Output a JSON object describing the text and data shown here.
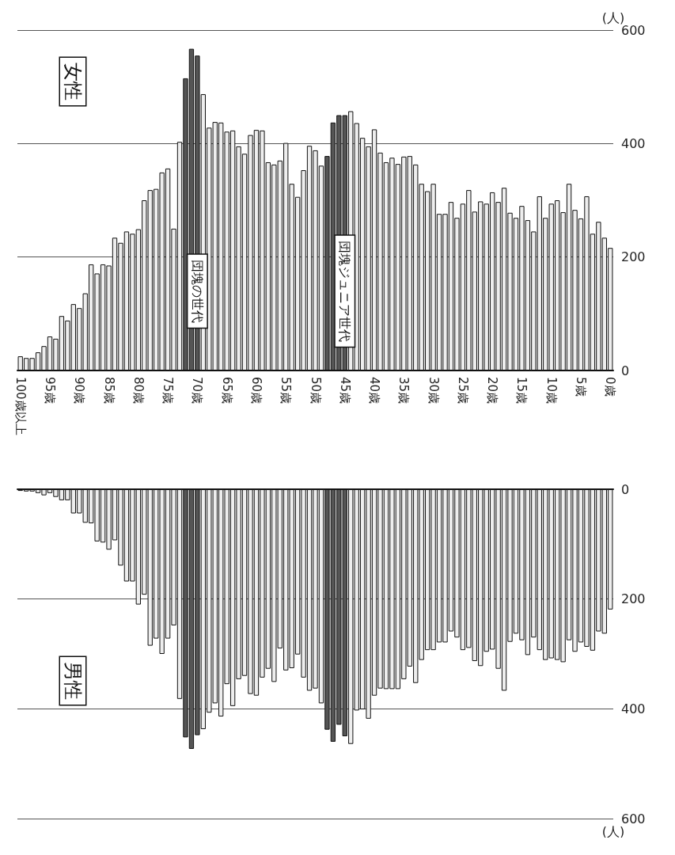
{
  "chart_data": [
    {
      "type": "bar",
      "categories": [
        "100歳以上",
        null,
        null,
        null,
        null,
        "95歳",
        null,
        null,
        null,
        null,
        "90歳",
        null,
        null,
        null,
        null,
        "85歳",
        null,
        null,
        null,
        null,
        "80歳",
        null,
        null,
        null,
        null,
        "75歳",
        null,
        null,
        null,
        null,
        "70歳",
        null,
        null,
        null,
        null,
        "65歳",
        null,
        null,
        null,
        null,
        "60歳",
        null,
        null,
        null,
        null,
        "55歳",
        null,
        null,
        null,
        null,
        "50歳",
        null,
        null,
        null,
        null,
        "45歳",
        null,
        null,
        null,
        null,
        "40歳",
        null,
        null,
        null,
        null,
        "35歳",
        null,
        null,
        null,
        null,
        "30歳",
        null,
        null,
        null,
        null,
        "25歳",
        null,
        null,
        null,
        null,
        "20歳",
        null,
        null,
        null,
        null,
        "15歳",
        null,
        null,
        null,
        null,
        "10歳",
        null,
        null,
        null,
        null,
        "5歳",
        null,
        null,
        null,
        null,
        "0歳"
      ],
      "series": [
        {
          "name": "女性",
          "values": [
            25,
            22,
            22,
            32,
            43,
            60,
            56,
            96,
            88,
            117,
            110,
            136,
            187,
            171,
            187,
            185,
            234,
            225,
            245,
            241,
            249,
            300,
            318,
            320,
            349,
            356,
            250,
            403,
            515,
            567,
            555,
            487,
            428,
            438,
            437,
            421,
            423,
            395,
            382,
            415,
            424,
            423,
            367,
            363,
            370,
            401,
            329,
            306,
            353,
            396,
            388,
            361,
            378,
            437,
            450,
            450,
            457,
            436,
            410,
            395,
            425,
            384,
            367,
            375,
            364,
            377,
            378,
            363,
            329,
            316,
            329,
            276,
            276,
            297,
            269,
            294,
            318,
            280,
            298,
            294,
            314,
            297,
            322,
            278,
            269,
            290,
            265,
            245,
            307,
            269,
            294,
            300,
            279,
            329,
            283,
            268,
            307,
            241,
            262,
            234,
            216
          ],
          "colors": [
            "#eeeeee",
            "#eeeeee",
            "#eeeeee",
            "#eeeeee",
            "#eeeeee",
            "#eeeeee",
            "#eeeeee",
            "#eeeeee",
            "#eeeeee",
            "#eeeeee",
            "#eeeeee",
            "#eeeeee",
            "#eeeeee",
            "#eeeeee",
            "#eeeeee",
            "#eeeeee",
            "#eeeeee",
            "#eeeeee",
            "#eeeeee",
            "#eeeeee",
            "#eeeeee",
            "#eeeeee",
            "#eeeeee",
            "#eeeeee",
            "#eeeeee",
            "#eeeeee",
            "#eeeeee",
            "#eeeeee",
            "#555555",
            "#555555",
            "#555555",
            "#eeeeee",
            "#eeeeee",
            "#eeeeee",
            "#eeeeee",
            "#eeeeee",
            "#eeeeee",
            "#eeeeee",
            "#eeeeee",
            "#eeeeee",
            "#eeeeee",
            "#eeeeee",
            "#eeeeee",
            "#eeeeee",
            "#eeeeee",
            "#eeeeee",
            "#eeeeee",
            "#eeeeee",
            "#eeeeee",
            "#eeeeee",
            "#eeeeee",
            "#eeeeee",
            "#555555",
            "#555555",
            "#555555",
            "#555555",
            "#eeeeee",
            "#eeeeee",
            "#eeeeee",
            "#eeeeee",
            "#eeeeee",
            "#eeeeee",
            "#eeeeee",
            "#eeeeee",
            "#eeeeee",
            "#eeeeee",
            "#eeeeee",
            "#eeeeee",
            "#eeeeee",
            "#eeeeee",
            "#eeeeee",
            "#eeeeee",
            "#eeeeee",
            "#eeeeee",
            "#eeeeee",
            "#eeeeee",
            "#eeeeee",
            "#eeeeee",
            "#eeeeee",
            "#eeeeee",
            "#eeeeee",
            "#eeeeee",
            "#eeeeee",
            "#eeeeee",
            "#eeeeee",
            "#eeeeee",
            "#eeeeee",
            "#eeeeee",
            "#eeeeee",
            "#eeeeee",
            "#eeeeee",
            "#eeeeee",
            "#eeeeee",
            "#eeeeee",
            "#eeeeee",
            "#eeeeee",
            "#eeeeee",
            "#eeeeee",
            "#eeeeee",
            "#eeeeee",
            "#eeeeee"
          ]
        }
      ],
      "ylim": [
        0,
        600
      ],
      "yticks": [
        0,
        200,
        400,
        600
      ],
      "ylabel": "(人)",
      "grid": "y",
      "legend": false,
      "annotations": [
        {
          "text": "団塊の世代",
          "x": "70歳",
          "y": 140
        },
        {
          "text": "団塊ジュニア世代",
          "x": "45歳",
          "y": 140
        }
      ]
    },
    {
      "type": "bar",
      "categories": [
        null,
        null,
        null,
        null,
        null,
        null,
        null,
        null,
        null,
        null,
        null,
        null,
        null,
        null,
        null,
        null,
        null,
        null,
        null,
        null,
        null,
        null,
        null,
        null,
        null,
        null,
        null,
        null,
        null,
        null,
        null,
        null,
        null,
        null,
        null,
        null,
        null,
        null,
        null,
        null,
        null,
        null,
        null,
        null,
        null,
        null,
        null,
        null,
        null,
        null,
        null,
        null,
        null,
        null,
        null,
        null,
        null,
        null,
        null,
        null,
        null,
        null,
        null,
        null,
        null,
        null,
        null,
        null,
        null,
        null,
        null,
        null,
        null,
        null,
        null,
        null,
        null,
        null,
        null,
        null,
        null,
        null,
        null,
        null,
        null,
        null,
        null,
        null,
        null,
        null,
        null,
        null,
        null,
        null,
        null,
        null,
        null,
        null,
        null,
        null,
        null
      ],
      "series": [
        {
          "name": "男性",
          "values": [
            3,
            4,
            4,
            7,
            11,
            7,
            14,
            20,
            20,
            44,
            44,
            61,
            62,
            95,
            97,
            110,
            93,
            139,
            168,
            168,
            210,
            192,
            285,
            272,
            300,
            272,
            248,
            382,
            452,
            473,
            448,
            437,
            407,
            390,
            414,
            355,
            395,
            346,
            340,
            373,
            376,
            343,
            327,
            351,
            290,
            330,
            326,
            301,
            343,
            367,
            363,
            390,
            438,
            460,
            429,
            450,
            464,
            403,
            401,
            418,
            376,
            363,
            364,
            364,
            364,
            346,
            323,
            353,
            311,
            293,
            293,
            279,
            279,
            259,
            270,
            293,
            289,
            313,
            322,
            296,
            292,
            327,
            367,
            278,
            263,
            275,
            302,
            270,
            293,
            311,
            308,
            311,
            315,
            275,
            296,
            279,
            287,
            294,
            259,
            263,
            219
          ],
          "colors": [
            "#eeeeee",
            "#eeeeee",
            "#eeeeee",
            "#eeeeee",
            "#eeeeee",
            "#eeeeee",
            "#eeeeee",
            "#eeeeee",
            "#eeeeee",
            "#eeeeee",
            "#eeeeee",
            "#eeeeee",
            "#eeeeee",
            "#eeeeee",
            "#eeeeee",
            "#eeeeee",
            "#eeeeee",
            "#eeeeee",
            "#eeeeee",
            "#eeeeee",
            "#eeeeee",
            "#eeeeee",
            "#eeeeee",
            "#eeeeee",
            "#eeeeee",
            "#eeeeee",
            "#eeeeee",
            "#eeeeee",
            "#555555",
            "#555555",
            "#555555",
            "#eeeeee",
            "#eeeeee",
            "#eeeeee",
            "#eeeeee",
            "#eeeeee",
            "#eeeeee",
            "#eeeeee",
            "#eeeeee",
            "#eeeeee",
            "#eeeeee",
            "#eeeeee",
            "#eeeeee",
            "#eeeeee",
            "#eeeeee",
            "#eeeeee",
            "#eeeeee",
            "#eeeeee",
            "#eeeeee",
            "#eeeeee",
            "#eeeeee",
            "#eeeeee",
            "#555555",
            "#555555",
            "#555555",
            "#555555",
            "#eeeeee",
            "#eeeeee",
            "#eeeeee",
            "#eeeeee",
            "#eeeeee",
            "#eeeeee",
            "#eeeeee",
            "#eeeeee",
            "#eeeeee",
            "#eeeeee",
            "#eeeeee",
            "#eeeeee",
            "#eeeeee",
            "#eeeeee",
            "#eeeeee",
            "#eeeeee",
            "#eeeeee",
            "#eeeeee",
            "#eeeeee",
            "#eeeeee",
            "#eeeeee",
            "#eeeeee",
            "#eeeeee",
            "#eeeeee",
            "#eeeeee",
            "#eeeeee",
            "#eeeeee",
            "#eeeeee",
            "#eeeeee",
            "#eeeeee",
            "#eeeeee",
            "#eeeeee",
            "#eeeeee",
            "#eeeeee",
            "#eeeeee",
            "#eeeeee",
            "#eeeeee",
            "#eeeeee",
            "#eeeeee",
            "#eeeeee",
            "#eeeeee",
            "#eeeeee",
            "#eeeeee",
            "#eeeeee",
            "#eeeeee"
          ]
        }
      ],
      "ylim": [
        600,
        0
      ],
      "yticks": [
        0,
        200,
        400,
        600
      ],
      "ylabel": "(人)",
      "grid": "y",
      "legend": false,
      "tick_labels": "y"
    }
  ]
}
